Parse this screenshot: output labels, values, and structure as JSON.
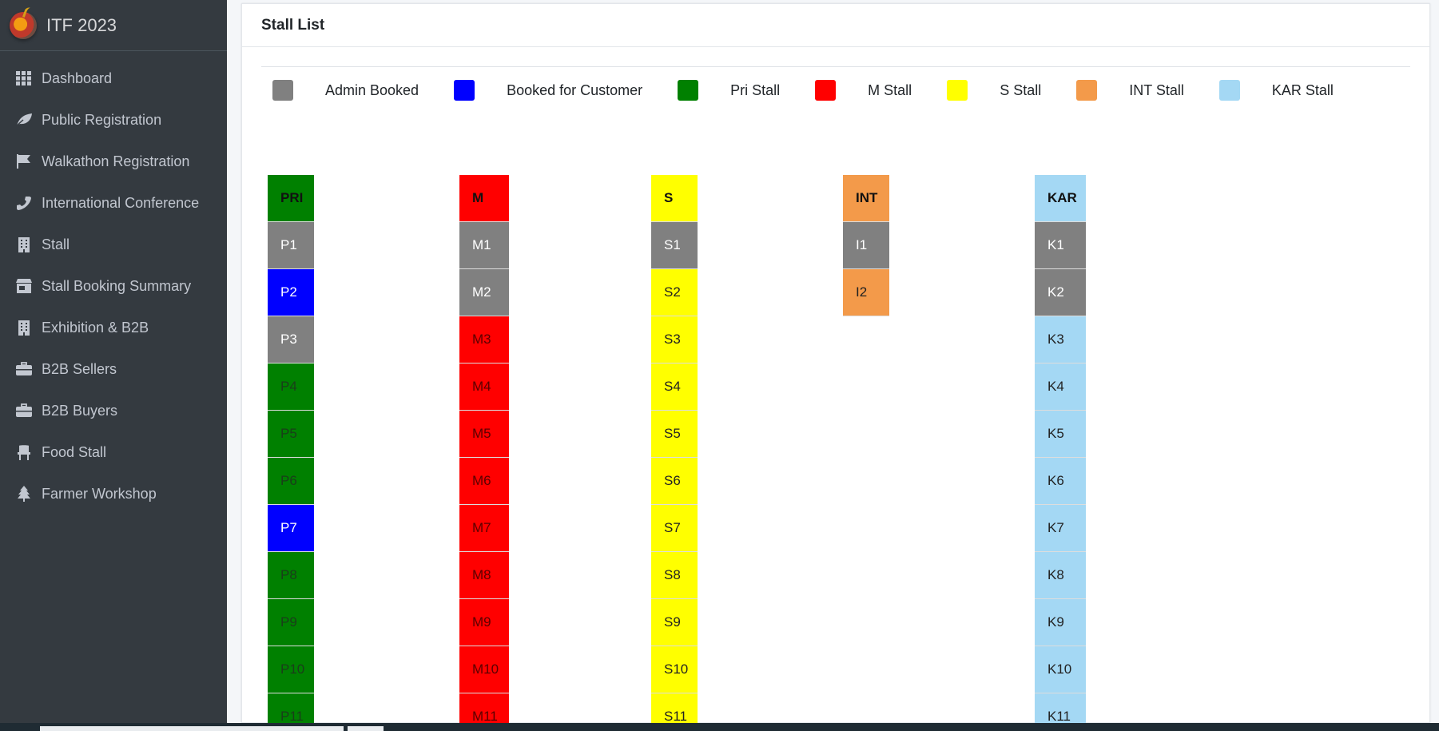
{
  "brand": {
    "title": "ITF 2023"
  },
  "sidebar": {
    "items": [
      {
        "label": "Dashboard",
        "icon": "grid-icon"
      },
      {
        "label": "Public Registration",
        "icon": "leaf-icon"
      },
      {
        "label": "Walkathon Registration",
        "icon": "flag-icon"
      },
      {
        "label": "International Conference",
        "icon": "phone-icon"
      },
      {
        "label": "Stall",
        "icon": "building-icon"
      },
      {
        "label": "Stall Booking Summary",
        "icon": "store-icon"
      },
      {
        "label": "Exhibition & B2B",
        "icon": "building-icon"
      },
      {
        "label": "B2B Sellers",
        "icon": "briefcase-icon"
      },
      {
        "label": "B2B Buyers",
        "icon": "briefcase-icon"
      },
      {
        "label": "Food Stall",
        "icon": "chair-icon"
      },
      {
        "label": "Farmer Workshop",
        "icon": "tree-icon"
      }
    ]
  },
  "card": {
    "title": "Stall List"
  },
  "legend": [
    {
      "label": "Admin Booked",
      "color": "#808080"
    },
    {
      "label": "Booked for Customer",
      "color": "#0000ff"
    },
    {
      "label": "Pri Stall",
      "color": "#008000"
    },
    {
      "label": "M Stall",
      "color": "#ff0000"
    },
    {
      "label": "S Stall",
      "color": "#ffff00"
    },
    {
      "label": "INT Stall",
      "color": "#f39a4a"
    },
    {
      "label": "KAR Stall",
      "color": "#a4d8f4"
    }
  ],
  "colors": {
    "admin": "#808080",
    "customer": "#0000ff",
    "pri": "#008000",
    "m": "#ff0000",
    "s": "#ffff00",
    "int": "#f39a4a",
    "kar": "#a4d8f4"
  },
  "stall_columns": [
    {
      "header": "PRI",
      "type": "pri",
      "stalls": [
        {
          "label": "P1",
          "status": "admin"
        },
        {
          "label": "P2",
          "status": "customer"
        },
        {
          "label": "P3",
          "status": "admin"
        },
        {
          "label": "P4",
          "status": "available"
        },
        {
          "label": "P5",
          "status": "available"
        },
        {
          "label": "P6",
          "status": "available"
        },
        {
          "label": "P7",
          "status": "customer"
        },
        {
          "label": "P8",
          "status": "available"
        },
        {
          "label": "P9",
          "status": "available"
        },
        {
          "label": "P10",
          "status": "available"
        },
        {
          "label": "P11",
          "status": "available"
        }
      ]
    },
    {
      "header": "M",
      "type": "m",
      "stalls": [
        {
          "label": "M1",
          "status": "admin"
        },
        {
          "label": "M2",
          "status": "admin"
        },
        {
          "label": "M3",
          "status": "available"
        },
        {
          "label": "M4",
          "status": "available"
        },
        {
          "label": "M5",
          "status": "available"
        },
        {
          "label": "M6",
          "status": "available"
        },
        {
          "label": "M7",
          "status": "available"
        },
        {
          "label": "M8",
          "status": "available"
        },
        {
          "label": "M9",
          "status": "available"
        },
        {
          "label": "M10",
          "status": "available"
        },
        {
          "label": "M11",
          "status": "available"
        }
      ]
    },
    {
      "header": "S",
      "type": "s",
      "stalls": [
        {
          "label": "S1",
          "status": "admin"
        },
        {
          "label": "S2",
          "status": "available"
        },
        {
          "label": "S3",
          "status": "available"
        },
        {
          "label": "S4",
          "status": "available"
        },
        {
          "label": "S5",
          "status": "available"
        },
        {
          "label": "S6",
          "status": "available"
        },
        {
          "label": "S7",
          "status": "available"
        },
        {
          "label": "S8",
          "status": "available"
        },
        {
          "label": "S9",
          "status": "available"
        },
        {
          "label": "S10",
          "status": "available"
        },
        {
          "label": "S11",
          "status": "available"
        }
      ]
    },
    {
      "header": "INT",
      "type": "int",
      "stalls": [
        {
          "label": "I1",
          "status": "admin"
        },
        {
          "label": "I2",
          "status": "available"
        }
      ]
    },
    {
      "header": "KAR",
      "type": "kar",
      "stalls": [
        {
          "label": "K1",
          "status": "admin"
        },
        {
          "label": "K2",
          "status": "admin"
        },
        {
          "label": "K3",
          "status": "available"
        },
        {
          "label": "K4",
          "status": "available"
        },
        {
          "label": "K5",
          "status": "available"
        },
        {
          "label": "K6",
          "status": "available"
        },
        {
          "label": "K7",
          "status": "available"
        },
        {
          "label": "K8",
          "status": "available"
        },
        {
          "label": "K9",
          "status": "available"
        },
        {
          "label": "K10",
          "status": "available"
        },
        {
          "label": "K11",
          "status": "available"
        }
      ]
    }
  ]
}
